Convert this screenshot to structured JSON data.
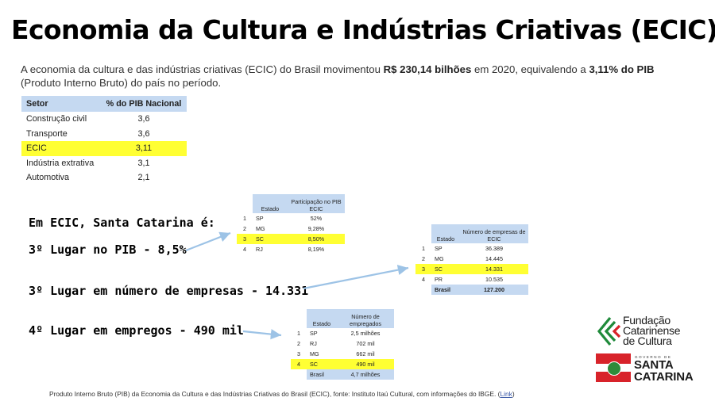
{
  "title": "Economia da Cultura e Indústrias Criativas (ECIC)",
  "intro": {
    "part1": "A economia da cultura e das indústrias criativas (ECIC) do Brasil movimentou ",
    "bold1": "R$ 230,14 bilhões",
    "part2": " em 2020, equivalendo a ",
    "bold2": "3,11% do PIB",
    "part3": " (Produto Interno Bruto) do país no período."
  },
  "sector_table": {
    "headers": [
      "Setor",
      "% do PIB Nacional"
    ],
    "rows": [
      [
        "Construção civil",
        "3,6"
      ],
      [
        "Transporte",
        "3,6"
      ],
      [
        "ECIC",
        "3,11"
      ],
      [
        "Indústria extrativa",
        "3,1"
      ],
      [
        "Automotiva",
        "2,1"
      ]
    ],
    "highlight_color": "#ffff33",
    "header_color": "#c5d9f1"
  },
  "highlights": {
    "intro": "Em ECIC, Santa Catarina é:",
    "pib": "3º Lugar no PIB - 8,5%",
    "empresas": "3º Lugar em número de empresas - 14.331",
    "empregos": "4º Lugar em empregos - 490 mil"
  },
  "pib_table": {
    "headers": [
      "",
      "Estado",
      "Participação no PIB ECIC"
    ],
    "rows": [
      [
        "1",
        "SP",
        "52%"
      ],
      [
        "2",
        "MG",
        "9,28%"
      ],
      [
        "3",
        "SC",
        "8,50%"
      ],
      [
        "4",
        "RJ",
        "8,19%"
      ]
    ]
  },
  "empresas_table": {
    "headers": [
      "",
      "Estado",
      "Número de empresas de ECIC"
    ],
    "rows": [
      [
        "1",
        "SP",
        "36.389"
      ],
      [
        "2",
        "MG",
        "14.445"
      ],
      [
        "3",
        "SC",
        "14.331"
      ],
      [
        "4",
        "PR",
        "10.535"
      ]
    ],
    "total": [
      "",
      "Brasil",
      "127.200"
    ]
  },
  "empregos_table": {
    "headers": [
      "",
      "Estado",
      "Número de empregados"
    ],
    "rows": [
      [
        "1",
        "SP",
        "2,5 milhões"
      ],
      [
        "2",
        "RJ",
        "702 mil"
      ],
      [
        "3",
        "MG",
        "662 mil"
      ],
      [
        "4",
        "SC",
        "490 mil"
      ]
    ],
    "total": [
      "",
      "Brasil",
      "4,7 milhões"
    ]
  },
  "footnote": {
    "text": "Produto Interno Bruto (PIB) da Economia da Cultura e das Indústrias Criativas do Brasil (ECIC), fonte: Instituto Itaú Cultural, com informações do IBGE. ",
    "link_open": "(",
    "link": "Link",
    "link_close": ")"
  },
  "logos": {
    "fcc_line1": "Fundação",
    "fcc_line2": "Catarinense",
    "fcc_line3": "de Cultura",
    "sc_small": "GOVERNO DE",
    "sc_line1": "SANTA",
    "sc_line2": "CATARINA"
  },
  "colors": {
    "highlight": "#ffff33",
    "table_header": "#c5d9f1",
    "arrow": "#9dc3e6",
    "fcc_green": "#1f8a3a",
    "fcc_red": "#d8232a"
  }
}
